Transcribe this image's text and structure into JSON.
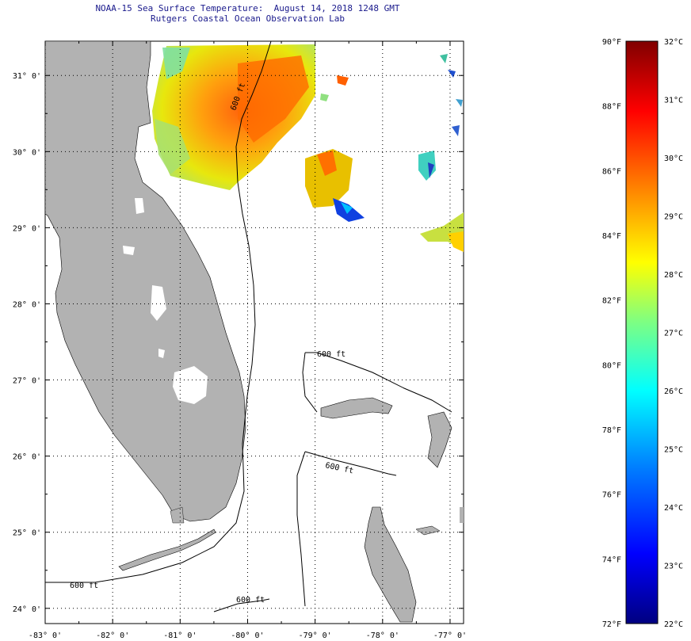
{
  "header": {
    "title": "NOAA-15 Sea Surface Temperature:  August 14, 2018 1248 GMT",
    "subtitle": "Rutgers Coastal Ocean Observation Lab"
  },
  "map": {
    "lon_range": [
      -83,
      -76.8
    ],
    "lat_range": [
      23.8,
      31.45
    ],
    "lon_ticks": [
      {
        "value": -83,
        "label": "-83° 0'"
      },
      {
        "value": -82,
        "label": "-82° 0'"
      },
      {
        "value": -81,
        "label": "-81° 0'"
      },
      {
        "value": -80,
        "label": "-80° 0'"
      },
      {
        "value": -79,
        "label": "-79° 0'"
      },
      {
        "value": -78,
        "label": "-78° 0'"
      },
      {
        "value": -77,
        "label": "-77° 0'"
      }
    ],
    "lat_ticks": [
      {
        "value": 31,
        "label": "31° 0'"
      },
      {
        "value": 30,
        "label": "30° 0'"
      },
      {
        "value": 29,
        "label": "29° 0'"
      },
      {
        "value": 28,
        "label": "28° 0'"
      },
      {
        "value": 27,
        "label": "27° 0'"
      },
      {
        "value": 26,
        "label": "26° 0'"
      },
      {
        "value": 25,
        "label": "25° 0'"
      },
      {
        "value": 24,
        "label": "24° 0'"
      }
    ],
    "contour_label": "600 ft",
    "land_color": "#b2b2b2",
    "ocean_color": "#ffffff"
  },
  "colorbar": {
    "f_ticks": [
      "90°F",
      "88°F",
      "86°F",
      "84°F",
      "82°F",
      "80°F",
      "78°F",
      "76°F",
      "74°F",
      "72°F"
    ],
    "c_ticks": [
      "32°C",
      "31°C",
      "30°C",
      "29°C",
      "28°C",
      "27°C",
      "26°C",
      "25°C",
      "24°C",
      "23°C",
      "22°C"
    ],
    "c_range": [
      22,
      32
    ],
    "colors": [
      "#000080",
      "#0000ff",
      "#0080ff",
      "#00ffff",
      "#80ff80",
      "#ffff00",
      "#ff8000",
      "#ff0000",
      "#800000"
    ]
  }
}
